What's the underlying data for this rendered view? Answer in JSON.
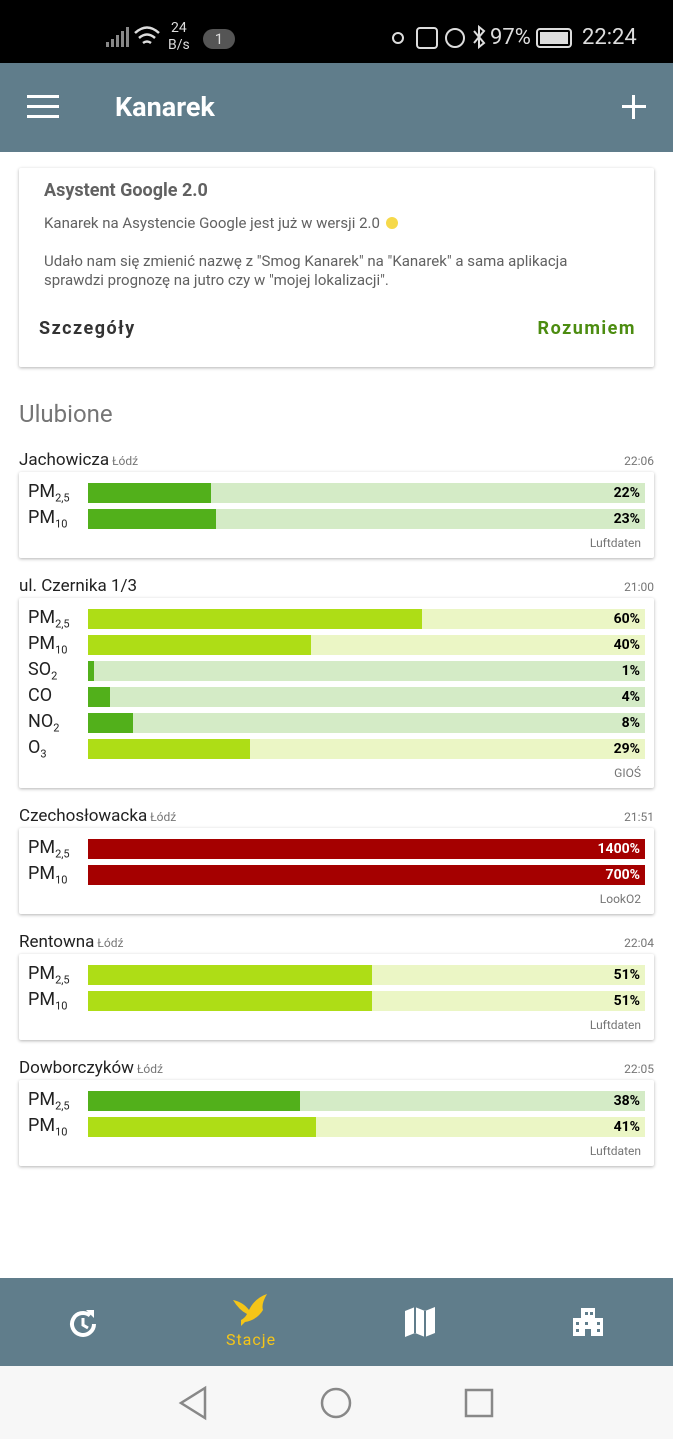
{
  "status_bar": {
    "speed": "24",
    "speed_unit": "B/s",
    "notifications": "1",
    "battery": "97%",
    "time": "22:24"
  },
  "app_bar": {
    "title": "Kanarek"
  },
  "notice": {
    "title": "Asystent Google 2.0",
    "line": "Kanarek na Asystencie Google jest już w wersji 2.0",
    "body": "Udało nam się zmienić nazwę z \"Smog Kanarek\" na \"Kanarek\" a sama aplikacja sprawdzi prognozę na jutro czy w \"mojej lokalizacji\".",
    "buttons": [
      "Szczegóły",
      "Rozumiem"
    ]
  },
  "section_title": "Ulubione",
  "stations": [
    {
      "name": "Jachowicza",
      "city": "Łódź",
      "time": "22:06",
      "source": "Luftdaten",
      "measurements": [
        {
          "pollutant": "PM",
          "subscript": "2,5",
          "value": 22,
          "value_label": "22%",
          "color": "#52b01b"
        },
        {
          "pollutant": "PM",
          "subscript": "10",
          "value": 23,
          "value_label": "23%",
          "color": "#52b01b"
        }
      ]
    },
    {
      "name": "ul. Czernika 1/3",
      "time": "21:00",
      "source": "GIOŚ",
      "measurements": [
        {
          "pollutant": "PM",
          "subscript": "2,5",
          "value": 60,
          "value_label": "60%",
          "color": "#aedd16"
        },
        {
          "pollutant": "PM",
          "subscript": "10",
          "value": 40,
          "value_label": "40%",
          "color": "#aedd16"
        },
        {
          "pollutant": "SO",
          "subscript": "2",
          "value": 1,
          "value_label": "1%",
          "color": "#52b01b"
        },
        {
          "pollutant": "CO",
          "value": 4,
          "value_label": "4%",
          "color": "#52b01b"
        },
        {
          "pollutant": "NO",
          "subscript": "2",
          "value": 8,
          "value_label": "8%",
          "color": "#52b01b"
        },
        {
          "pollutant": "O",
          "subscript": "3",
          "value": 29,
          "value_label": "29%",
          "color": "#aedd16"
        }
      ]
    },
    {
      "name": "Czechosłowacka",
      "city": "Łódź",
      "time": "21:51",
      "source": "LookO2",
      "measurements": [
        {
          "pollutant": "PM",
          "subscript": "2,5",
          "value": 1400,
          "value_label": "1400%",
          "color": "#a50000"
        },
        {
          "pollutant": "PM",
          "subscript": "10",
          "value": 700,
          "value_label": "700%",
          "color": "#a50000"
        }
      ]
    },
    {
      "name": "Rentowna",
      "city": "Łódź",
      "time": "22:04",
      "source": "Luftdaten",
      "measurements": [
        {
          "pollutant": "PM",
          "subscript": "2,5",
          "value": 51,
          "value_label": "51%",
          "color": "#aedd16"
        },
        {
          "pollutant": "PM",
          "subscript": "10",
          "value": 51,
          "value_label": "51%",
          "color": "#aedd16"
        }
      ]
    },
    {
      "name": "Dowborczyków",
      "city": "Łódź",
      "time": "22:05",
      "source": "Luftdaten",
      "measurements": [
        {
          "pollutant": "PM",
          "subscript": "2,5",
          "value": 38,
          "value_label": "38%",
          "color": "#52b01b"
        },
        {
          "pollutant": "PM",
          "subscript": "10",
          "value": 41,
          "value_label": "41%",
          "color": "#aedd16"
        }
      ]
    }
  ],
  "bottom_nav": {
    "active": "Stacje"
  }
}
